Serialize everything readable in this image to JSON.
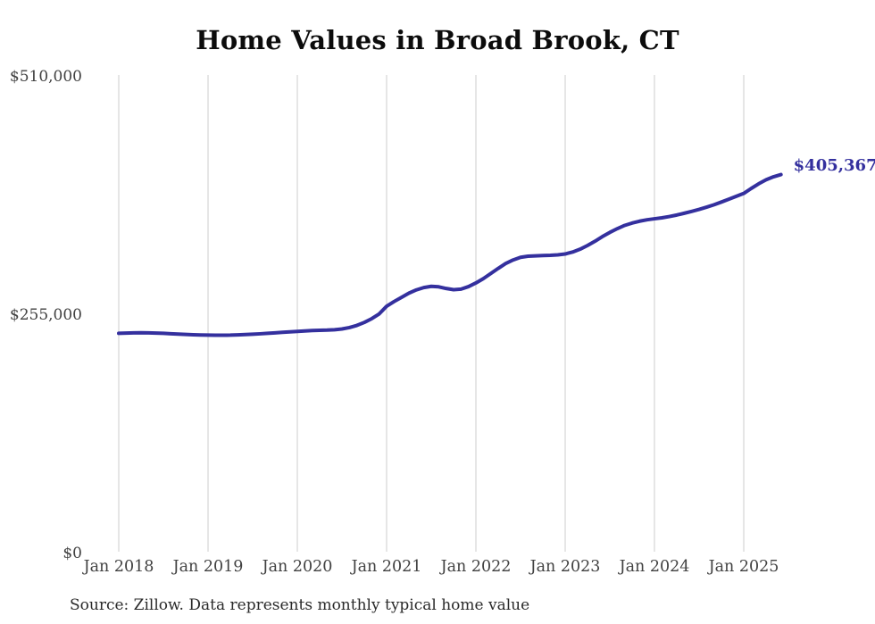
{
  "chart_data": {
    "type": "line",
    "title": "Home Values in Broad Brook, CT",
    "xlabel": "",
    "ylabel": "",
    "ylim": [
      0,
      510000
    ],
    "grid": "vertical",
    "legend": "none",
    "y_tick_labels": [
      "$510,000",
      "$255,000",
      "$0"
    ],
    "y_tick_values": [
      510000,
      255000,
      0
    ],
    "x_tick_labels": [
      "Jan 2018",
      "Jan 2019",
      "Jan 2020",
      "Jan 2021",
      "Jan 2022",
      "Jan 2023",
      "Jan 2024",
      "Jan 2025"
    ],
    "line_color": "#34309e",
    "grid_color": "#cccccc",
    "end_label": "$405,367",
    "latest_value": 405367,
    "source": "Source: Zillow. Data represents monthly typical home value",
    "series": [
      {
        "name": "Monthly typical home value",
        "start": "Jan 2018",
        "interval": "monthly",
        "values": [
          235500,
          235800,
          236000,
          236100,
          236000,
          235800,
          235500,
          235100,
          234700,
          234300,
          234000,
          233800,
          233600,
          233500,
          233500,
          233600,
          233900,
          234200,
          234600,
          235000,
          235500,
          236000,
          236600,
          237100,
          237600,
          238100,
          238500,
          238800,
          239000,
          239400,
          240200,
          241700,
          244000,
          247200,
          251200,
          256300,
          264500,
          269500,
          274000,
          278500,
          282000,
          284500,
          285800,
          285300,
          283500,
          282200,
          282800,
          285500,
          289400,
          294000,
          299500,
          305000,
          310200,
          314000,
          316800,
          318000,
          318400,
          318700,
          319000,
          319500,
          320400,
          322500,
          325500,
          329500,
          334000,
          339000,
          343500,
          347500,
          351000,
          353500,
          355500,
          357000,
          358100,
          359100,
          360500,
          362100,
          364000,
          366000,
          368100,
          370500,
          373100,
          376000,
          379000,
          382100,
          385200,
          390500,
          395500,
          399800,
          403000,
          405367
        ]
      }
    ]
  }
}
